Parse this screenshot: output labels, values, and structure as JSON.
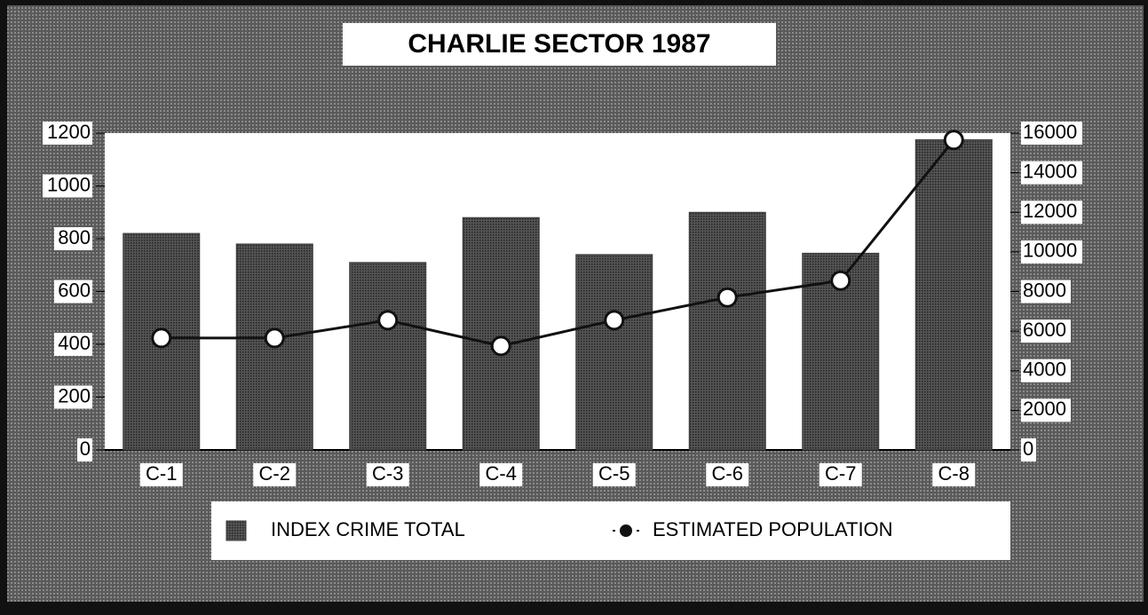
{
  "chart_data": {
    "type": "bar",
    "title": "CHARLIE  SECTOR  1987",
    "categories": [
      "C-1",
      "C-2",
      "C-3",
      "C-4",
      "C-5",
      "C-6",
      "C-7",
      "C-8"
    ],
    "series": [
      {
        "name": "INDEX CRIME TOTAL",
        "type": "bar",
        "color": "#3a3a3a",
        "values": [
          820,
          780,
          710,
          880,
          740,
          900,
          745,
          1175
        ]
      },
      {
        "name": "ESTIMATED POPULATION",
        "type": "line",
        "axis": "y2",
        "color": "#111111",
        "values": [
          5650,
          5650,
          6550,
          5250,
          6550,
          7700,
          8550,
          15650
        ]
      }
    ],
    "ylim": [
      0,
      1200
    ],
    "yticks": [
      0,
      200,
      400,
      600,
      800,
      1000,
      1200
    ],
    "y2lim": [
      0,
      16000
    ],
    "y2ticks": [
      0,
      2000,
      4000,
      6000,
      8000,
      10000,
      12000,
      14000,
      16000
    ],
    "legend": "bottom",
    "grid": false
  }
}
